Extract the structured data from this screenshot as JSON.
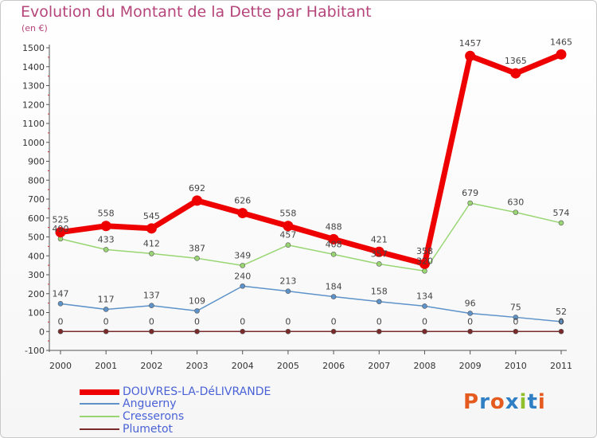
{
  "chart": {
    "title": "Evolution du Montant de la Dette par Habitant",
    "unit": "(en €)"
  },
  "chart_data": {
    "type": "line",
    "x": [
      2000,
      2001,
      2002,
      2003,
      2004,
      2005,
      2006,
      2007,
      2008,
      2009,
      2010,
      2011
    ],
    "ylim": [
      -100,
      1500
    ],
    "yticks": [
      -100,
      0,
      100,
      200,
      300,
      400,
      500,
      600,
      700,
      800,
      900,
      1000,
      1100,
      1200,
      1300,
      1400,
      1500
    ],
    "grid": false,
    "legend": "bottom-left",
    "series": [
      {
        "name": "Plumetot",
        "color": "#7a2a2a",
        "values": [
          0,
          0,
          0,
          0,
          0,
          0,
          0,
          0,
          0,
          0,
          0,
          0
        ]
      },
      {
        "name": "Anguerny",
        "color": "#5d93c9",
        "values": [
          147,
          117,
          137,
          109,
          240,
          213,
          184,
          158,
          134,
          96,
          75,
          52
        ]
      },
      {
        "name": "Cresserons",
        "color": "#99d673",
        "values": [
          490,
          433,
          412,
          387,
          349,
          457,
          408,
          357,
          320,
          679,
          630,
          574
        ]
      },
      {
        "name": "DOUVRES-LA-DéLIVRANDE",
        "color": "#ee0000",
        "values": [
          525,
          558,
          545,
          692,
          626,
          558,
          488,
          421,
          358,
          1457,
          1365,
          1465
        ]
      }
    ]
  },
  "legend": {
    "items": [
      {
        "label": "DOUVRES-LA-DéLIVRANDE",
        "color": "#ee0000"
      },
      {
        "label": "Anguerny",
        "color": "#5d93c9"
      },
      {
        "label": "Cresserons",
        "color": "#99d673"
      },
      {
        "label": "Plumetot",
        "color": "#7a2a2a"
      }
    ]
  },
  "logo": {
    "text": "Proxiti",
    "colors": [
      "#e55b1f",
      "#2f7fc4",
      "#e55b1f",
      "#2f7fc4",
      "#8fbf2a",
      "#2f7fc4",
      "#e55b1f"
    ]
  }
}
